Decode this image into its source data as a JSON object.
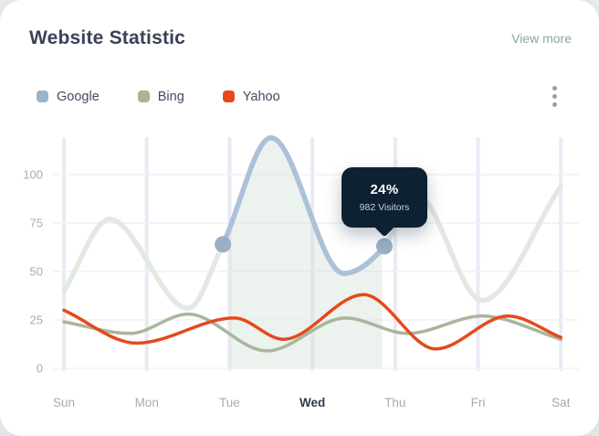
{
  "header": {
    "title": "Website Statistic",
    "view_more_label": "View more"
  },
  "legend": [
    {
      "label": "Google",
      "color": "#9db4c8"
    },
    {
      "label": "Bing",
      "color": "#a6b497"
    },
    {
      "label": "Yahoo",
      "color": "#e6491c"
    }
  ],
  "tooltip": {
    "value": "24%",
    "label": "982 Visitors"
  },
  "chart_data": {
    "type": "line",
    "title": "Website Statistic",
    "categories": [
      "Sun",
      "Mon",
      "Tue",
      "Wed",
      "Thu",
      "Fri",
      "Sat"
    ],
    "selected_category": "Wed",
    "y_ticks": [
      0,
      25,
      50,
      75,
      100
    ],
    "ylim": [
      0,
      120
    ],
    "grid": true,
    "legend_position": "top-left",
    "x_unit": "day index 0-6 (fractional x = curve shape points read from plot)",
    "series": [
      {
        "name": "Google",
        "color_active": "#abc1d8",
        "color_faded": "#e2e9e3",
        "points": [
          [
            0,
            40
          ],
          [
            0.55,
            77
          ],
          [
            1.5,
            31
          ],
          [
            1.92,
            64
          ],
          [
            2.5,
            119
          ],
          [
            3.38,
            49
          ],
          [
            3.87,
            63
          ],
          [
            4.25,
            90
          ],
          [
            5.05,
            35
          ],
          [
            6,
            94
          ]
        ],
        "highlight": {
          "from": 1.92,
          "to": 3.87,
          "fill": "rgba(213,226,218,0.45)",
          "fill_from": 2.0,
          "fill_to": 3.84,
          "markers": [
            [
              1.92,
              64
            ],
            [
              3.87,
              63
            ]
          ]
        }
      },
      {
        "name": "Bing",
        "color": "#a8b69b",
        "points": [
          [
            0,
            24
          ],
          [
            0.8,
            18
          ],
          [
            1.5,
            28
          ],
          [
            2.45,
            9
          ],
          [
            3.4,
            26
          ],
          [
            4.15,
            18
          ],
          [
            5.05,
            27
          ],
          [
            6,
            15
          ]
        ]
      },
      {
        "name": "Yahoo",
        "color": "#e6491c",
        "points": [
          [
            0,
            30
          ],
          [
            0.88,
            13
          ],
          [
            2.06,
            26
          ],
          [
            2.65,
            15
          ],
          [
            3.62,
            38
          ],
          [
            4.49,
            10
          ],
          [
            5.36,
            27
          ],
          [
            6,
            16
          ]
        ]
      }
    ],
    "tooltip": {
      "value": "24%",
      "label": "982 Visitors",
      "series": "Google",
      "attached_to": [
        3.87,
        63
      ]
    }
  }
}
